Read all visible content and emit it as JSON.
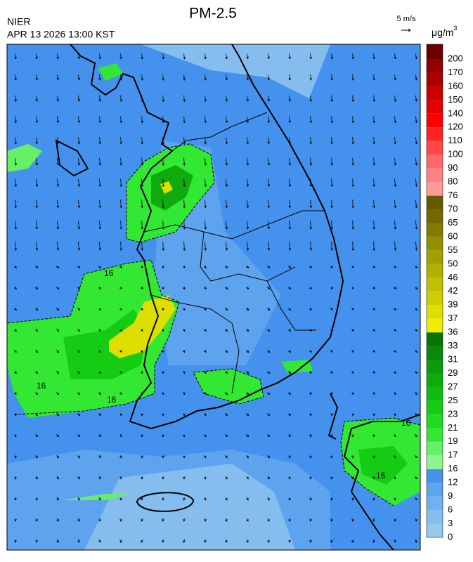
{
  "header": {
    "title": "PM-2.5",
    "org": "NIER",
    "datetime": "APR 13 2026 13:00 KST"
  },
  "wind_scale": {
    "label": "5 m/s"
  },
  "legend": {
    "unit": "μg/m",
    "unit_exponent": "3",
    "levels": [
      0,
      3,
      6,
      9,
      12,
      16,
      17,
      19,
      21,
      23,
      25,
      27,
      29,
      31,
      33,
      36,
      37,
      39,
      42,
      46,
      50,
      55,
      60,
      65,
      70,
      76,
      80,
      90,
      100,
      110,
      120,
      140,
      150,
      160,
      170,
      200
    ],
    "colors": [
      "#95c8ec",
      "#85bdee",
      "#72b0ef",
      "#5ea3ee",
      "#4592ee",
      "#8ef58e",
      "#66f066",
      "#33e833",
      "#1fdc1f",
      "#14cc14",
      "#10bc10",
      "#0eaa0e",
      "#0c990c",
      "#098809",
      "#067406",
      "#eeee00",
      "#dede00",
      "#cdcd00",
      "#c0c000",
      "#b0b000",
      "#a0a000",
      "#909000",
      "#807c00",
      "#706a00",
      "#615c00",
      "#ff9a9a",
      "#ff8282",
      "#ff6868",
      "#ff4848",
      "#ff2222",
      "#ff0000",
      "#e40000",
      "#c80000",
      "#aa0000",
      "#920000",
      "#6a0000"
    ]
  },
  "contour_labels": [
    "16",
    "16",
    "16",
    "16",
    "16"
  ]
}
